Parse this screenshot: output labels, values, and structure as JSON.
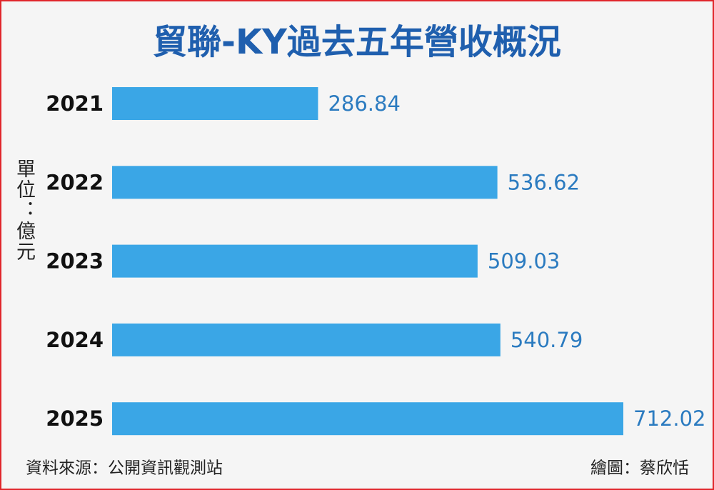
{
  "chart_data": {
    "type": "bar",
    "orientation": "horizontal",
    "title": "貿聯-KY過去五年營收概況",
    "unit_label": "單位：億元",
    "categories": [
      "2021",
      "2022",
      "2023",
      "2024",
      "2025"
    ],
    "values": [
      286.84,
      536.62,
      509.03,
      540.79,
      712.02
    ],
    "color": "#3aa6e6",
    "source": "資料來源：公開資訊觀測站",
    "credit": "繪圖：蔡欣恬"
  }
}
